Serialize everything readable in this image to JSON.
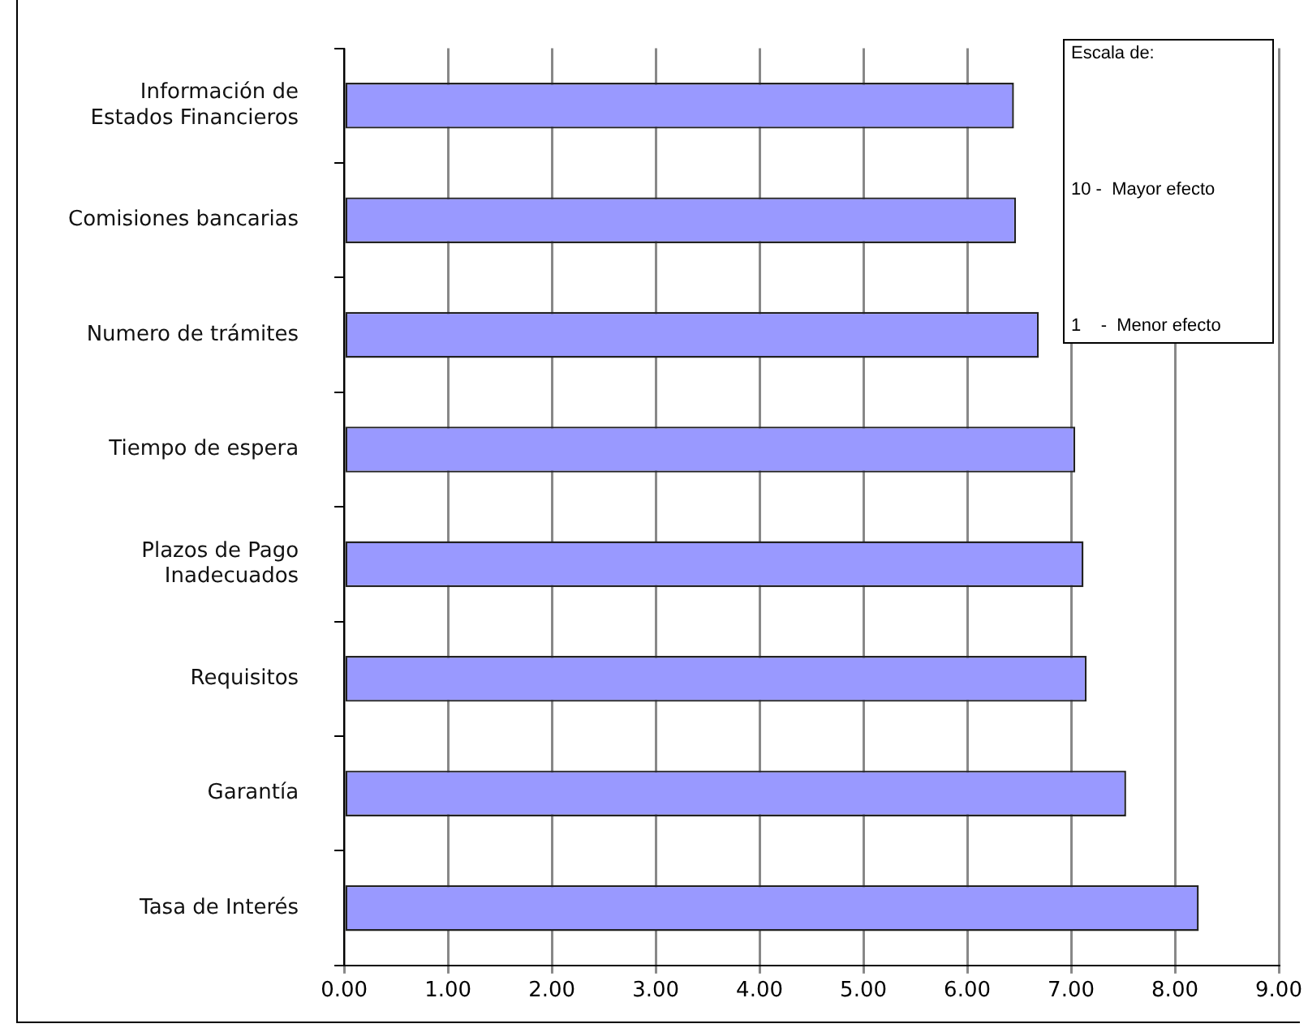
{
  "chart_data": {
    "type": "bar",
    "orientation": "horizontal",
    "categories": [
      "Información de\nEstados Financieros",
      "Comisiones bancarias",
      "Numero de trámites",
      "Tiempo de espera",
      "Plazos de Pago\nInadecuados",
      "Requisitos",
      "Garantía",
      "Tasa de Interés"
    ],
    "values": [
      6.45,
      6.47,
      6.69,
      7.04,
      7.12,
      7.15,
      7.53,
      8.23
    ],
    "color": "#9999ff",
    "xlim": [
      0,
      9
    ],
    "xticks": [
      {
        "value": 0,
        "label": "0.00"
      },
      {
        "value": 1,
        "label": "1.00"
      },
      {
        "value": 2,
        "label": "2.00"
      },
      {
        "value": 3,
        "label": "3.00"
      },
      {
        "value": 4,
        "label": "4.00"
      },
      {
        "value": 5,
        "label": "5.00"
      },
      {
        "value": 6,
        "label": "6.00"
      },
      {
        "value": 7,
        "label": "7.00"
      },
      {
        "value": 8,
        "label": "8.00"
      },
      {
        "value": 9,
        "label": "9.00"
      }
    ],
    "grid": "x",
    "annotations": [
      "Escala de:",
      "10 -  Mayor efecto",
      "1    -  Menor efecto"
    ]
  }
}
